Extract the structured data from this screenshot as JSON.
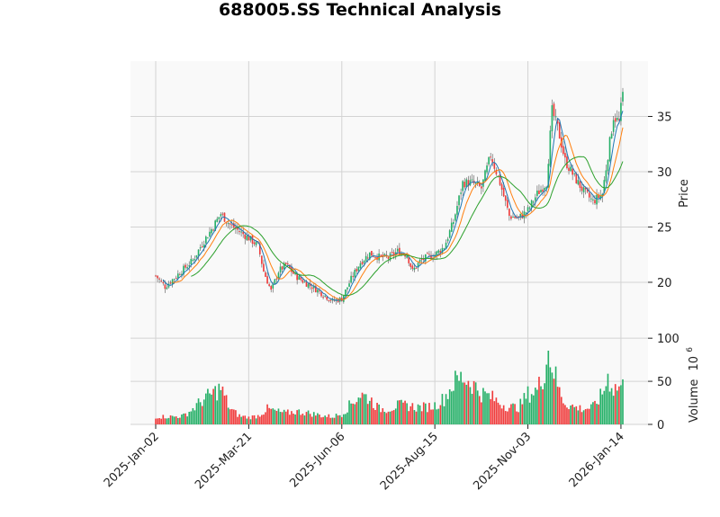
{
  "chart_data": {
    "type": "candlestick",
    "title": "688005.SS Technical Analysis",
    "price_panel": {
      "ylabel": "Price",
      "ylim": [
        16.5,
        40.0
      ],
      "yticks": [
        20,
        25,
        30,
        35
      ],
      "moving_averages": [
        {
          "color": "#1f77b4"
        },
        {
          "color": "#ff7f0e"
        },
        {
          "color": "#2ca02c"
        }
      ]
    },
    "volume_panel": {
      "ylabel": "Volume",
      "exponent_label": "10",
      "exponent_power": "6",
      "ylim": [
        0,
        100
      ],
      "yticks": [
        0,
        50,
        100
      ]
    },
    "x_ticks": [
      {
        "label": "2025-Jan-02",
        "index": 0
      },
      {
        "label": "2025-Mar-21",
        "index": 50
      },
      {
        "label": "2025-Jun-06",
        "index": 100
      },
      {
        "label": "2025-Aug-15",
        "index": 150
      },
      {
        "label": "2025-Nov-03",
        "index": 200
      },
      {
        "label": "2026-Jan-14",
        "index": 250
      }
    ],
    "up_color": "#26b068",
    "down_color": "#f03c3c",
    "grid": true,
    "price_anchors": [
      [
        0,
        20.6
      ],
      [
        5,
        19.6
      ],
      [
        10,
        20.4
      ],
      [
        15,
        21.2
      ],
      [
        20,
        22.0
      ],
      [
        25,
        23.5
      ],
      [
        30,
        24.8
      ],
      [
        35,
        26.2
      ],
      [
        40,
        25.2
      ],
      [
        45,
        24.6
      ],
      [
        50,
        24.0
      ],
      [
        55,
        23.3
      ],
      [
        58,
        21.0
      ],
      [
        62,
        19.2
      ],
      [
        66,
        21.0
      ],
      [
        70,
        21.6
      ],
      [
        75,
        20.6
      ],
      [
        80,
        20.0
      ],
      [
        85,
        19.5
      ],
      [
        90,
        18.9
      ],
      [
        95,
        18.3
      ],
      [
        100,
        18.5
      ],
      [
        105,
        20.3
      ],
      [
        110,
        21.8
      ],
      [
        115,
        22.6
      ],
      [
        120,
        22.3
      ],
      [
        125,
        22.2
      ],
      [
        130,
        22.8
      ],
      [
        135,
        22.5
      ],
      [
        138,
        21.0
      ],
      [
        142,
        21.9
      ],
      [
        146,
        22.3
      ],
      [
        150,
        22.5
      ],
      [
        155,
        23.2
      ],
      [
        160,
        25.5
      ],
      [
        165,
        29.0
      ],
      [
        170,
        29.0
      ],
      [
        175,
        28.5
      ],
      [
        180,
        31.5
      ],
      [
        185,
        29.0
      ],
      [
        190,
        26.0
      ],
      [
        195,
        25.8
      ],
      [
        200,
        26.5
      ],
      [
        205,
        28.0
      ],
      [
        210,
        29.0
      ],
      [
        213,
        35.5
      ],
      [
        216,
        34.0
      ],
      [
        220,
        31.0
      ],
      [
        225,
        29.5
      ],
      [
        230,
        28.2
      ],
      [
        235,
        27.3
      ],
      [
        240,
        28.0
      ],
      [
        243,
        31.5
      ],
      [
        246,
        35.0
      ],
      [
        249,
        34.5
      ],
      [
        251,
        37.0
      ]
    ],
    "volume_anchors": [
      [
        0,
        9
      ],
      [
        10,
        9
      ],
      [
        15,
        10
      ],
      [
        20,
        18
      ],
      [
        25,
        28
      ],
      [
        30,
        35
      ],
      [
        35,
        42
      ],
      [
        40,
        18
      ],
      [
        45,
        10
      ],
      [
        50,
        8
      ],
      [
        55,
        10
      ],
      [
        60,
        18
      ],
      [
        65,
        15
      ],
      [
        70,
        13
      ],
      [
        75,
        15
      ],
      [
        80,
        14
      ],
      [
        85,
        12
      ],
      [
        90,
        10
      ],
      [
        95,
        9
      ],
      [
        100,
        12
      ],
      [
        105,
        24
      ],
      [
        110,
        35
      ],
      [
        115,
        30
      ],
      [
        120,
        18
      ],
      [
        125,
        18
      ],
      [
        130,
        22
      ],
      [
        135,
        22
      ],
      [
        140,
        20
      ],
      [
        145,
        20
      ],
      [
        150,
        22
      ],
      [
        155,
        30
      ],
      [
        160,
        48
      ],
      [
        165,
        55
      ],
      [
        170,
        48
      ],
      [
        175,
        36
      ],
      [
        180,
        32
      ],
      [
        185,
        25
      ],
      [
        190,
        20
      ],
      [
        195,
        20
      ],
      [
        200,
        35
      ],
      [
        205,
        40
      ],
      [
        208,
        55
      ],
      [
        211,
        85
      ],
      [
        214,
        62
      ],
      [
        217,
        38
      ],
      [
        220,
        25
      ],
      [
        225,
        20
      ],
      [
        230,
        18
      ],
      [
        235,
        20
      ],
      [
        240,
        35
      ],
      [
        243,
        55
      ],
      [
        246,
        42
      ],
      [
        250,
        44
      ]
    ]
  }
}
